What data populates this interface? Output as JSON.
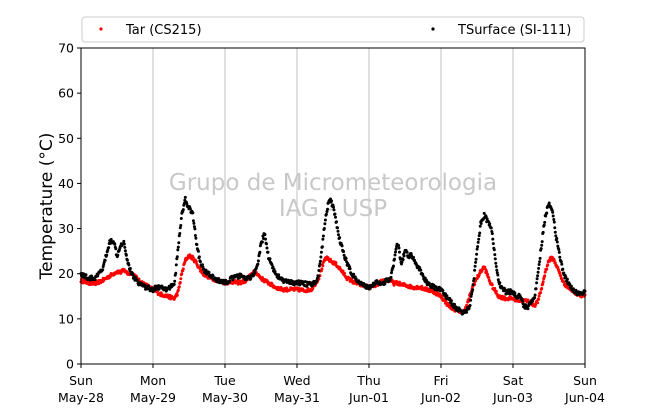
{
  "chart_data": {
    "type": "scatter",
    "title": "",
    "xlabel": "",
    "ylabel": "Temperature (°C)",
    "ylim": [
      0,
      70
    ],
    "yticks": [
      0,
      10,
      20,
      30,
      40,
      50,
      60,
      70
    ],
    "xlim_days": [
      0,
      7
    ],
    "xticks": [
      {
        "day": "Sun",
        "date": "May-28"
      },
      {
        "day": "Mon",
        "date": "May-29"
      },
      {
        "day": "Tue",
        "date": "May-30"
      },
      {
        "day": "Wed",
        "date": "May-31"
      },
      {
        "day": "Thu",
        "date": "Jun-01"
      },
      {
        "day": "Fri",
        "date": "Jun-02"
      },
      {
        "day": "Sat",
        "date": "Jun-03"
      },
      {
        "day": "Sun",
        "date": "Jun-04"
      }
    ],
    "grid": "vertical",
    "legend_position": "top",
    "watermark": [
      "Grupo de Micrometeorologia",
      "IAG - USP"
    ],
    "series": [
      {
        "name": "Tar (CS215)",
        "color": "#ff0000",
        "marker": "dot",
        "x": [
          0.0,
          0.1,
          0.2,
          0.3,
          0.4,
          0.5,
          0.55,
          0.6,
          0.65,
          0.7,
          0.75,
          0.8,
          0.9,
          1.0,
          1.1,
          1.2,
          1.3,
          1.35,
          1.4,
          1.45,
          1.5,
          1.55,
          1.6,
          1.65,
          1.7,
          1.8,
          1.9,
          2.0,
          2.1,
          2.2,
          2.3,
          2.35,
          2.4,
          2.45,
          2.5,
          2.55,
          2.6,
          2.7,
          2.8,
          2.9,
          3.0,
          3.1,
          3.2,
          3.3,
          3.35,
          3.4,
          3.45,
          3.5,
          3.55,
          3.6,
          3.7,
          3.8,
          3.9,
          4.0,
          4.1,
          4.2,
          4.3,
          4.35,
          4.4,
          4.45,
          4.5,
          4.6,
          4.7,
          4.8,
          4.9,
          5.0,
          5.1,
          5.2,
          5.3,
          5.35,
          5.4,
          5.45,
          5.5,
          5.55,
          5.6,
          5.7,
          5.8,
          5.9,
          6.0,
          6.1,
          6.2,
          6.3,
          6.35,
          6.4,
          6.45,
          6.5,
          6.55,
          6.6,
          6.7,
          6.8,
          6.9,
          7.0
        ],
        "y": [
          18.5,
          18.0,
          17.8,
          18.5,
          19.5,
          20.5,
          20.3,
          20.8,
          20.0,
          20.2,
          19.5,
          18.5,
          17.5,
          16.5,
          15.5,
          15.0,
          14.5,
          16.0,
          20.0,
          23.0,
          24.0,
          23.5,
          22.5,
          21.0,
          20.0,
          19.0,
          18.5,
          18.0,
          18.2,
          18.0,
          18.5,
          19.5,
          20.5,
          20.0,
          19.0,
          18.5,
          18.0,
          17.0,
          16.5,
          16.5,
          16.5,
          16.3,
          16.5,
          19.0,
          21.5,
          23.5,
          23.0,
          22.5,
          22.0,
          21.0,
          19.0,
          18.0,
          17.5,
          17.0,
          17.5,
          18.5,
          18.5,
          17.8,
          18.0,
          17.5,
          17.5,
          17.0,
          17.0,
          16.5,
          16.0,
          15.0,
          13.0,
          12.0,
          11.5,
          12.5,
          15.0,
          17.5,
          19.0,
          20.5,
          21.5,
          17.5,
          15.0,
          14.5,
          14.5,
          14.0,
          14.0,
          13.0,
          14.0,
          17.0,
          20.5,
          23.0,
          23.5,
          22.0,
          18.0,
          16.5,
          15.5,
          15.0
        ]
      },
      {
        "name": "TSurface (SI-111)",
        "color": "#000000",
        "marker": "dot",
        "x": [
          0.0,
          0.05,
          0.1,
          0.2,
          0.3,
          0.35,
          0.4,
          0.45,
          0.5,
          0.55,
          0.6,
          0.63,
          0.66,
          0.7,
          0.8,
          0.9,
          1.0,
          1.05,
          1.1,
          1.15,
          1.2,
          1.3,
          1.35,
          1.4,
          1.45,
          1.5,
          1.55,
          1.58,
          1.6,
          1.65,
          1.7,
          1.8,
          1.9,
          2.0,
          2.1,
          2.2,
          2.3,
          2.35,
          2.4,
          2.45,
          2.5,
          2.55,
          2.6,
          2.7,
          2.8,
          2.9,
          3.0,
          3.1,
          3.2,
          3.25,
          3.3,
          3.35,
          3.4,
          3.45,
          3.5,
          3.55,
          3.6,
          3.7,
          3.8,
          3.9,
          4.0,
          4.1,
          4.2,
          4.3,
          4.35,
          4.4,
          4.45,
          4.5,
          4.55,
          4.6,
          4.65,
          4.7,
          4.8,
          4.9,
          5.0,
          5.1,
          5.2,
          5.3,
          5.35,
          5.4,
          5.45,
          5.5,
          5.55,
          5.6,
          5.7,
          5.8,
          5.9,
          6.0,
          6.05,
          6.1,
          6.15,
          6.2,
          6.3,
          6.35,
          6.4,
          6.45,
          6.5,
          6.55,
          6.6,
          6.7,
          6.8,
          6.9,
          7.0
        ],
        "y": [
          20.0,
          19.5,
          19.0,
          19.0,
          21.0,
          24.0,
          27.0,
          27.5,
          24.0,
          26.5,
          27.0,
          24.0,
          22.0,
          20.0,
          18.0,
          17.0,
          16.5,
          17.0,
          17.0,
          16.5,
          16.5,
          18.0,
          26.0,
          33.0,
          36.5,
          34.5,
          33.5,
          30.0,
          27.0,
          23.0,
          21.0,
          19.5,
          18.5,
          18.0,
          19.0,
          19.5,
          19.0,
          19.0,
          20.0,
          21.5,
          26.5,
          29.0,
          24.0,
          20.0,
          18.5,
          18.0,
          18.0,
          17.8,
          17.5,
          18.0,
          20.0,
          26.0,
          33.0,
          36.5,
          35.0,
          31.0,
          27.0,
          22.0,
          19.0,
          17.5,
          17.0,
          18.0,
          18.0,
          19.0,
          23.0,
          27.0,
          22.0,
          25.0,
          24.0,
          24.0,
          22.0,
          21.0,
          18.0,
          17.0,
          16.5,
          14.5,
          12.5,
          11.5,
          11.5,
          13.0,
          18.0,
          25.0,
          31.0,
          33.0,
          30.0,
          18.0,
          16.0,
          16.0,
          15.0,
          15.0,
          13.0,
          12.5,
          15.0,
          20.0,
          27.0,
          33.0,
          35.5,
          34.0,
          28.0,
          20.0,
          17.0,
          15.5,
          16.0
        ]
      }
    ]
  }
}
